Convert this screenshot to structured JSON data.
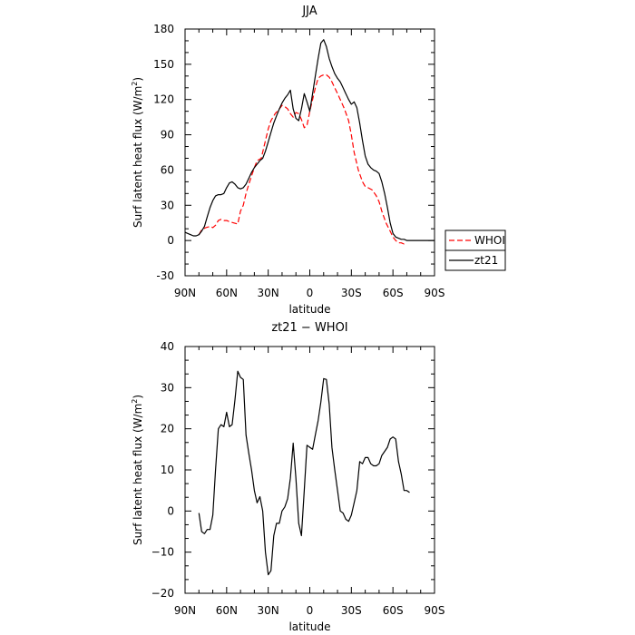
{
  "chart_data": [
    {
      "type": "line",
      "title": "JJA",
      "xlabel": "latitude",
      "ylabel": "Surf latent heat flux (W/m",
      "ylabel_sup": "2",
      "ylabel_close": ")",
      "xlim": [
        -90,
        90
      ],
      "ylim": [
        -30,
        180
      ],
      "xticks": [
        -90,
        -60,
        -30,
        0,
        30,
        60,
        90
      ],
      "xtick_labels": [
        "90N",
        "60N",
        "30N",
        "0",
        "30S",
        "60S",
        "90S"
      ],
      "yticks": [
        -30,
        0,
        30,
        60,
        90,
        120,
        150,
        180
      ],
      "ytick_labels": [
        "-30",
        "0",
        "30",
        "60",
        "90",
        "120",
        "150",
        "180"
      ],
      "grid": false,
      "legend": "right, outside plot",
      "series": [
        {
          "name": "WHOI",
          "color": "#ff0000",
          "dash": "dashed",
          "x": [
            -80,
            -78,
            -75,
            -72,
            -70,
            -68,
            -66,
            -64,
            -62,
            -60,
            -58,
            -55,
            -52,
            -50,
            -48,
            -46,
            -44,
            -42,
            -40,
            -38,
            -35,
            -32,
            -30,
            -28,
            -25,
            -22,
            -20,
            -18,
            -16,
            -14,
            -12,
            -10,
            -8,
            -6,
            -4,
            -2,
            0,
            2,
            4,
            6,
            8,
            10,
            12,
            14,
            16,
            18,
            20,
            22,
            25,
            28,
            30,
            32,
            35,
            38,
            40,
            42,
            45,
            48,
            50,
            52,
            55,
            58,
            60,
            62,
            64,
            66,
            68,
            70
          ],
          "y": [
            5,
            9,
            11,
            12,
            11,
            13,
            17,
            18,
            17,
            17,
            16,
            15,
            14,
            25,
            30,
            40,
            48,
            55,
            62,
            68,
            70,
            85,
            95,
            102,
            108,
            112,
            115,
            114,
            112,
            108,
            105,
            109,
            108,
            103,
            96,
            98,
            110,
            120,
            130,
            138,
            140,
            141,
            141,
            139,
            135,
            130,
            125,
            120,
            112,
            102,
            90,
            75,
            60,
            50,
            46,
            45,
            43,
            38,
            33,
            25,
            15,
            8,
            3,
            0,
            -2,
            -2,
            -3,
            -3
          ]
        },
        {
          "name": "zt21",
          "color": "#000000",
          "dash": "solid",
          "x": [
            -90,
            -88,
            -86,
            -84,
            -82,
            -80,
            -78,
            -76,
            -74,
            -72,
            -70,
            -68,
            -66,
            -64,
            -62,
            -60,
            -58,
            -56,
            -54,
            -52,
            -50,
            -48,
            -46,
            -44,
            -42,
            -40,
            -38,
            -36,
            -34,
            -32,
            -30,
            -28,
            -26,
            -24,
            -22,
            -20,
            -18,
            -16,
            -14,
            -12,
            -10,
            -8,
            -6,
            -4,
            -2,
            0,
            2,
            4,
            6,
            8,
            10,
            12,
            14,
            16,
            18,
            20,
            22,
            24,
            26,
            28,
            30,
            32,
            34,
            36,
            38,
            40,
            42,
            44,
            46,
            48,
            50,
            52,
            54,
            56,
            58,
            60,
            62,
            64,
            66,
            68,
            70,
            72,
            74,
            76,
            78,
            80,
            82,
            84,
            86,
            88,
            90
          ],
          "y": [
            7,
            6,
            5,
            4,
            4,
            5,
            8,
            12,
            20,
            28,
            34,
            38,
            39,
            39,
            40,
            45,
            49,
            50,
            48,
            45,
            44,
            45,
            48,
            53,
            58,
            62,
            65,
            68,
            70,
            76,
            84,
            92,
            100,
            106,
            112,
            117,
            121,
            124,
            128,
            112,
            104,
            102,
            112,
            125,
            118,
            110,
            125,
            140,
            155,
            168,
            171,
            165,
            155,
            148,
            142,
            138,
            135,
            130,
            125,
            120,
            116,
            118,
            113,
            100,
            85,
            72,
            65,
            62,
            60,
            59,
            57,
            50,
            40,
            28,
            15,
            6,
            3,
            2,
            1,
            1,
            0,
            0,
            0,
            0,
            0,
            0,
            0,
            0,
            0,
            0,
            0
          ]
        }
      ]
    },
    {
      "type": "line",
      "title": "zt21 − WHOI",
      "xlabel": "latitude",
      "ylabel": "Surf latent heat flux (W/m",
      "ylabel_sup": "2",
      "ylabel_close": ")",
      "xlim": [
        -90,
        90
      ],
      "ylim": [
        -20,
        40
      ],
      "xticks": [
        -90,
        -60,
        -30,
        0,
        30,
        60,
        90
      ],
      "xtick_labels": [
        "90N",
        "60N",
        "30N",
        "0",
        "30S",
        "60S",
        "90S"
      ],
      "yticks": [
        -20,
        -10,
        0,
        10,
        20,
        30,
        40
      ],
      "ytick_labels": [
        "−20",
        "−10",
        "0",
        "10",
        "20",
        "30",
        "40"
      ],
      "grid": false,
      "series": [
        {
          "color": "#000000",
          "dash": "solid",
          "x": [
            -80,
            -78,
            -76,
            -74,
            -72,
            -70,
            -68,
            -66,
            -64,
            -62,
            -60,
            -58,
            -56,
            -54,
            -52,
            -50,
            -48,
            -46,
            -44,
            -42,
            -40,
            -38,
            -36,
            -34,
            -32,
            -30,
            -28,
            -26,
            -24,
            -22,
            -20,
            -18,
            -16,
            -14,
            -12,
            -10,
            -8,
            -6,
            -4,
            -2,
            0,
            2,
            4,
            6,
            8,
            10,
            12,
            14,
            16,
            18,
            20,
            22,
            24,
            26,
            28,
            30,
            32,
            34,
            36,
            38,
            40,
            42,
            44,
            46,
            48,
            50,
            52,
            54,
            56,
            58,
            60,
            62,
            64,
            66,
            68,
            70,
            72
          ],
          "y": [
            -0.5,
            -5,
            -5.5,
            -4.5,
            -4.5,
            -1,
            10,
            20,
            21,
            20.5,
            24,
            20.5,
            21,
            27,
            34,
            32.5,
            32,
            18.5,
            14,
            10,
            5,
            2,
            3.5,
            0,
            -10,
            -15.5,
            -14.5,
            -6,
            -3,
            -3,
            0,
            1,
            3,
            8,
            16.5,
            8,
            -3,
            -6,
            5,
            16,
            15.5,
            15,
            18.5,
            22,
            26.5,
            32.2,
            32,
            26,
            15.5,
            10,
            5,
            0,
            -0.5,
            -2,
            -2.5,
            -1,
            2,
            5,
            12,
            11.5,
            13,
            13,
            11.5,
            11,
            11,
            11.5,
            13.5,
            14.5,
            15.5,
            17.5,
            18,
            17.5,
            12,
            9,
            5,
            5,
            4.5
          ]
        }
      ]
    }
  ]
}
